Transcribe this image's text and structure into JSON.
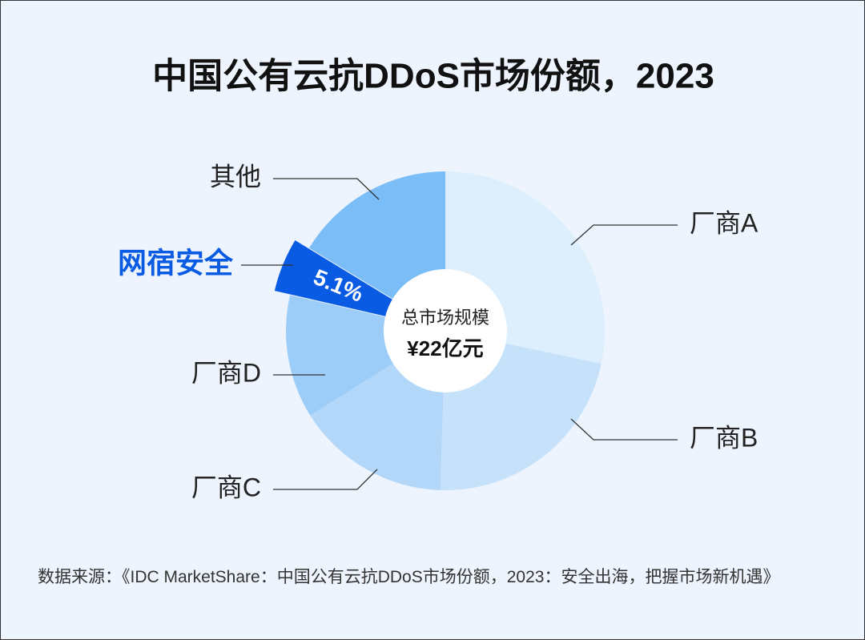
{
  "chart_data": {
    "type": "donut",
    "title": "中国公有云抗DDoS市场份额，2023",
    "categories": [
      "厂商A",
      "厂商B",
      "厂商C",
      "厂商D",
      "网宿安全",
      "其他"
    ],
    "values": [
      28.3,
      22.2,
      15.6,
      12.5,
      5.1,
      16.3
    ],
    "value_labels": [
      null,
      null,
      null,
      null,
      "5.1%",
      null
    ],
    "colors": [
      "#ddeefc",
      "#c6e2fb",
      "#b2d7f9",
      "#9ccdf8",
      "#0a5be3",
      "#7bbdf7"
    ],
    "highlight": 4,
    "center_label": [
      "总市场规模",
      "¥22亿元"
    ],
    "source": "数据来源：《IDC MarketShare：中国公有云抗DDoS市场份额，2023：安全出海，把握市场新机遇》"
  }
}
